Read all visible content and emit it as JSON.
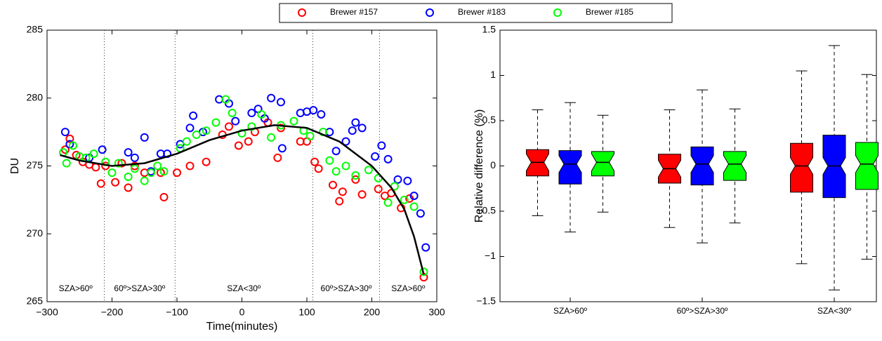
{
  "chart_data": [
    {
      "type": "scatter",
      "xlabel": "Time(minutes)",
      "ylabel": "DU",
      "xlim": [
        -300,
        300
      ],
      "ylim": [
        265,
        285
      ],
      "xticks": [
        {
          "value": -300,
          "label": "−300"
        },
        {
          "value": -200,
          "label": "−200"
        },
        {
          "value": -100,
          "label": "−100"
        },
        0,
        100,
        200,
        300
      ],
      "yticks": [
        265,
        270,
        275,
        280,
        285
      ],
      "legend": "top",
      "series": [
        {
          "name": "Brewer #157",
          "color": "#ff0000",
          "x": [
            -272,
            -265,
            -255,
            -245,
            -235,
            -225,
            -217,
            -210,
            -195,
            -185,
            -175,
            -165,
            -150,
            -125,
            -120,
            -100,
            -80,
            -55,
            -30,
            -20,
            -5,
            10,
            20,
            40,
            55,
            60,
            90,
            100,
            112,
            118,
            140,
            150,
            155,
            175,
            185,
            210,
            220,
            230,
            245,
            258,
            280
          ],
          "values": [
            276.2,
            277.0,
            275.8,
            275.3,
            275.1,
            274.9,
            273.7,
            275.0,
            273.8,
            275.2,
            273.4,
            275.0,
            274.5,
            274.5,
            272.7,
            274.5,
            275.0,
            275.3,
            277.3,
            277.9,
            276.5,
            276.8,
            277.5,
            278.2,
            275.6,
            277.8,
            276.8,
            276.8,
            275.3,
            274.8,
            273.6,
            272.4,
            273.1,
            274.0,
            272.9,
            273.3,
            272.8,
            273.0,
            271.9,
            272.6,
            266.8
          ]
        },
        {
          "name": "Brewer #183",
          "color": "#0000ff",
          "x": [
            -272,
            -265,
            -235,
            -215,
            -175,
            -165,
            -150,
            -140,
            -125,
            -115,
            -95,
            -80,
            -75,
            -60,
            -35,
            -20,
            -10,
            15,
            25,
            35,
            45,
            60,
            62,
            90,
            100,
            110,
            122,
            135,
            145,
            160,
            170,
            175,
            185,
            205,
            215,
            225,
            240,
            255,
            265,
            275,
            283
          ],
          "values": [
            277.5,
            276.6,
            275.6,
            276.2,
            276.0,
            275.6,
            277.1,
            274.6,
            275.9,
            275.9,
            276.6,
            277.8,
            278.7,
            277.5,
            279.9,
            279.6,
            278.3,
            278.9,
            279.2,
            278.5,
            280.0,
            279.7,
            276.3,
            278.9,
            279.0,
            279.1,
            278.8,
            277.5,
            276.1,
            276.8,
            277.6,
            278.2,
            277.8,
            275.7,
            276.5,
            275.5,
            274.0,
            273.9,
            272.8,
            271.5,
            269.0
          ]
        },
        {
          "name": "Brewer #185",
          "color": "#00ff00",
          "x": [
            -275,
            -270,
            -260,
            -250,
            -240,
            -228,
            -210,
            -200,
            -190,
            -175,
            -165,
            -150,
            -140,
            -130,
            -120,
            -95,
            -85,
            -70,
            -55,
            -40,
            -25,
            -15,
            0,
            15,
            30,
            45,
            60,
            80,
            95,
            105,
            125,
            135,
            145,
            160,
            175,
            195,
            210,
            225,
            235,
            250,
            265,
            280
          ],
          "values": [
            276.0,
            275.2,
            276.5,
            275.7,
            275.6,
            275.9,
            275.3,
            274.5,
            275.2,
            274.2,
            274.8,
            273.9,
            274.5,
            275.0,
            274.6,
            276.3,
            276.8,
            277.3,
            277.6,
            278.2,
            279.9,
            278.9,
            277.4,
            277.9,
            278.8,
            277.1,
            278.0,
            278.3,
            277.6,
            277.2,
            277.5,
            275.4,
            274.6,
            275.0,
            274.3,
            274.7,
            274.1,
            272.3,
            273.5,
            272.5,
            272.0,
            267.2
          ]
        }
      ],
      "fit": {
        "color": "#000000",
        "x": [
          -280,
          -250,
          -200,
          -150,
          -100,
          -50,
          0,
          50,
          100,
          150,
          200,
          230,
          250,
          265,
          280
        ],
        "values": [
          275.8,
          275.4,
          275.0,
          275.2,
          275.9,
          276.9,
          277.6,
          278.0,
          277.8,
          276.8,
          275.0,
          273.4,
          271.8,
          269.8,
          267.0
        ]
      },
      "vlines": [
        -212,
        -103,
        109,
        212
      ],
      "annotations": [
        "SZA>60º",
        "60º>SZA>30º",
        "SZA<30º",
        "60º>SZA>30º",
        "SZA>60º"
      ]
    },
    {
      "type": "box",
      "ylabel": "Relative difference (%)",
      "categories": [
        "SZA>60º",
        "60º>SZA>30º",
        "SZA<30º"
      ],
      "ylim": [
        -1.5,
        1.5
      ],
      "yticks": [
        {
          "value": -1.5,
          "label": "−1.5"
        },
        {
          "value": -1,
          "label": "−1"
        },
        {
          "value": -0.5,
          "label": "−0.5"
        },
        0,
        0.5,
        1,
        1.5
      ],
      "series": [
        {
          "color": "#ff0000",
          "whislo": [
            -0.55,
            -0.68,
            -1.08
          ],
          "q1": [
            -0.11,
            -0.19,
            -0.29
          ],
          "med": [
            0.04,
            -0.03,
            0.0
          ],
          "q3": [
            0.18,
            0.13,
            0.25
          ],
          "whishi": [
            0.62,
            0.62,
            1.05
          ]
        },
        {
          "color": "#0000ff",
          "whislo": [
            -0.73,
            -0.85,
            -1.37
          ],
          "q1": [
            -0.2,
            -0.21,
            -0.35
          ],
          "med": [
            0.02,
            0.02,
            0.0
          ],
          "q3": [
            0.17,
            0.21,
            0.34
          ],
          "whishi": [
            0.7,
            0.84,
            1.33
          ]
        },
        {
          "color": "#00ff00",
          "whislo": [
            -0.51,
            -0.63,
            -1.03
          ],
          "q1": [
            -0.11,
            -0.16,
            -0.26
          ],
          "med": [
            0.04,
            0.02,
            0.02
          ],
          "q3": [
            0.16,
            0.16,
            0.26
          ],
          "whishi": [
            0.56,
            0.63,
            1.01
          ]
        }
      ]
    }
  ]
}
